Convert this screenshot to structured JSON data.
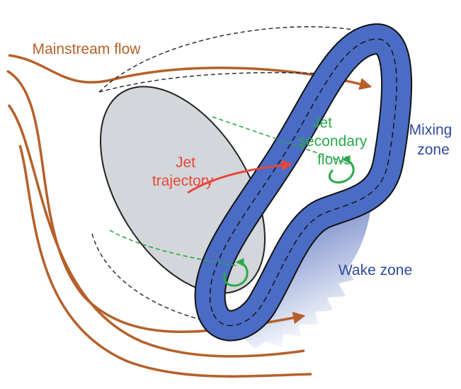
{
  "labels": {
    "mainstream": "Mainstream flow",
    "jet_trajectory": [
      "Jet",
      "trajectory"
    ],
    "secondary_flows": [
      "Jet",
      "secondary",
      "flows"
    ],
    "mixing_zone": [
      "Mixing",
      "zone"
    ],
    "wake_zone": "Wake zone"
  }
}
